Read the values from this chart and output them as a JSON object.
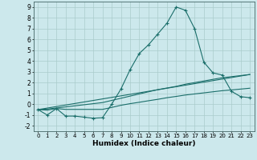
{
  "xlabel": "Humidex (Indice chaleur)",
  "background_color": "#cce8ec",
  "grid_color": "#aacccc",
  "line_color": "#1a6e6a",
  "xlim": [
    -0.5,
    23.5
  ],
  "ylim": [
    -2.5,
    9.5
  ],
  "xticks": [
    0,
    1,
    2,
    3,
    4,
    5,
    6,
    7,
    8,
    9,
    10,
    11,
    12,
    13,
    14,
    15,
    16,
    17,
    18,
    19,
    20,
    21,
    22,
    23
  ],
  "yticks": [
    -2,
    -1,
    0,
    1,
    2,
    3,
    4,
    5,
    6,
    7,
    8,
    9
  ],
  "series": [
    {
      "x": [
        0,
        1,
        2,
        3,
        4,
        5,
        6,
        7,
        8,
        9,
        10,
        11,
        12,
        13,
        14,
        15,
        16,
        17,
        18,
        19,
        20,
        21,
        22,
        23
      ],
      "y": [
        -0.5,
        -1.0,
        -0.4,
        -1.1,
        -1.1,
        -1.2,
        -1.3,
        -1.25,
        0.0,
        1.4,
        3.2,
        4.7,
        5.5,
        6.5,
        7.5,
        9.0,
        8.7,
        7.0,
        3.9,
        2.9,
        2.7,
        1.2,
        0.7,
        0.6
      ],
      "marker": "+"
    },
    {
      "x": [
        0,
        1,
        2,
        3,
        4,
        5,
        6,
        7,
        8,
        9,
        10,
        11,
        12,
        13,
        14,
        15,
        16,
        17,
        18,
        19,
        20,
        21,
        22,
        23
      ],
      "y": [
        -0.5,
        -0.45,
        -0.35,
        -0.25,
        -0.15,
        -0.05,
        0.05,
        0.15,
        0.35,
        0.55,
        0.75,
        0.95,
        1.15,
        1.35,
        1.5,
        1.65,
        1.85,
        2.0,
        2.15,
        2.3,
        2.45,
        2.55,
        2.65,
        2.75
      ],
      "marker": null
    },
    {
      "x": [
        0,
        23
      ],
      "y": [
        -0.5,
        2.75
      ],
      "marker": null
    },
    {
      "x": [
        0,
        1,
        2,
        3,
        4,
        5,
        6,
        7,
        8,
        9,
        10,
        11,
        12,
        13,
        14,
        15,
        16,
        17,
        18,
        19,
        20,
        21,
        22,
        23
      ],
      "y": [
        -0.5,
        -0.55,
        -0.4,
        -0.48,
        -0.48,
        -0.48,
        -0.48,
        -0.48,
        -0.3,
        -0.1,
        0.05,
        0.18,
        0.32,
        0.45,
        0.6,
        0.72,
        0.85,
        0.95,
        1.05,
        1.15,
        1.25,
        1.32,
        1.4,
        1.48
      ],
      "marker": null
    }
  ]
}
